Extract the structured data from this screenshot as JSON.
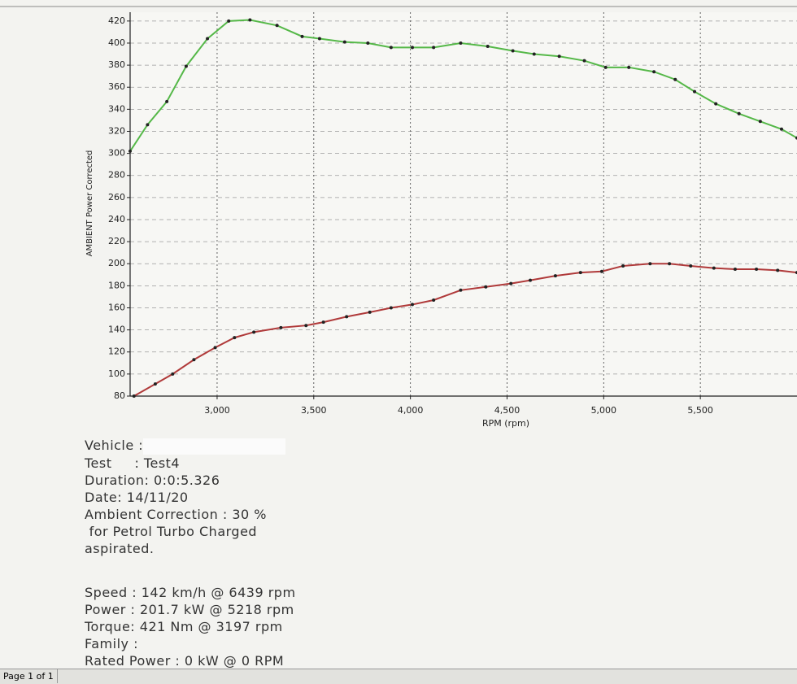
{
  "chart_data": {
    "type": "line",
    "xlabel": "RPM (rpm)",
    "ylabel": "AMBIENT Power Corrected",
    "xlim": [
      2550,
      6000
    ],
    "ylim": [
      80,
      428
    ],
    "xticks": [
      {
        "value": 3000,
        "label": "3,000"
      },
      {
        "value": 3500,
        "label": "3,500"
      },
      {
        "value": 4000,
        "label": "4,000"
      },
      {
        "value": 4500,
        "label": "4,500"
      },
      {
        "value": 5000,
        "label": "5,000"
      },
      {
        "value": 5500,
        "label": "5,500"
      }
    ],
    "yticks": [
      80,
      100,
      120,
      140,
      160,
      180,
      200,
      220,
      240,
      260,
      280,
      300,
      320,
      340,
      360,
      380,
      400,
      420
    ],
    "grid": true,
    "series": [
      {
        "color": "#55b848",
        "x": [
          2550,
          2640,
          2740,
          2840,
          2950,
          3060,
          3170,
          3310,
          3440,
          3530,
          3660,
          3780,
          3900,
          4010,
          4120,
          4260,
          4400,
          4530,
          4640,
          4770,
          4900,
          5010,
          5130,
          5260,
          5370,
          5470,
          5580,
          5700,
          5810,
          5920,
          6000
        ],
        "values": [
          302,
          326,
          347,
          379,
          404,
          420,
          421,
          416,
          406,
          404,
          401,
          400,
          396,
          396,
          396,
          400,
          397,
          393,
          390,
          388,
          384,
          378,
          378,
          374,
          367,
          356,
          345,
          336,
          329,
          322,
          314
        ]
      },
      {
        "color": "#b03a3a",
        "x": [
          2570,
          2680,
          2770,
          2880,
          2990,
          3090,
          3190,
          3330,
          3460,
          3550,
          3670,
          3790,
          3900,
          4010,
          4120,
          4260,
          4390,
          4520,
          4620,
          4750,
          4880,
          4990,
          5100,
          5240,
          5340,
          5450,
          5570,
          5680,
          5790,
          5900,
          6000
        ],
        "values": [
          80,
          91,
          100,
          113,
          124,
          133,
          138,
          142,
          144,
          147,
          152,
          156,
          160,
          163,
          167,
          176,
          179,
          182,
          185,
          189,
          192,
          193,
          198,
          200,
          200,
          198,
          196,
          195,
          195,
          194,
          192
        ]
      }
    ]
  },
  "report": {
    "lines": [
      "Vehicle :",
      "Test     : Test4",
      "Duration: 0:0:5.326",
      "Date: 14/11/20",
      "Ambient Correction : 30 %",
      " for Petrol Turbo Charged",
      "aspirated."
    ],
    "summary": [
      "Speed : 142 km/h @ 6439 rpm",
      "Power : 201.7 kW @ 5218 rpm",
      "Torque: 421 Nm @ 3197 rpm",
      "Family :",
      "Rated Power : 0 kW @ 0 RPM"
    ]
  },
  "footer": "Page 1 of 1"
}
